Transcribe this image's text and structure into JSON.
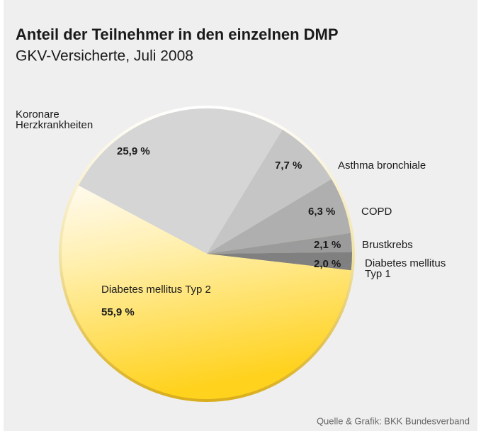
{
  "chart_data": {
    "type": "pie",
    "title": "Anteil der Teilnehmer in den einzelnen DMP",
    "subtitle": "GKV-Versicherte, Juli 2008",
    "categories": [
      "Koronare Herzkrankheiten",
      "Asthma bronchiale",
      "COPD",
      "Brustkrebs",
      "Diabetes mellitus Typ 1",
      "Diabetes mellitus Typ 2"
    ],
    "values": [
      25.9,
      7.7,
      6.3,
      2.1,
      2.0,
      55.9
    ],
    "value_labels": [
      "25,9 %",
      "7,7 %",
      "6,3 %",
      "2,1 %",
      "2,0 %",
      "55,9 %"
    ],
    "colors": [
      "#d5d5d5",
      "#c5c5c5",
      "#afafaf",
      "#9b9b9b",
      "#808080",
      "#ffd21e"
    ],
    "source": "Quelle & Grafik: BKK Bundesverband"
  }
}
